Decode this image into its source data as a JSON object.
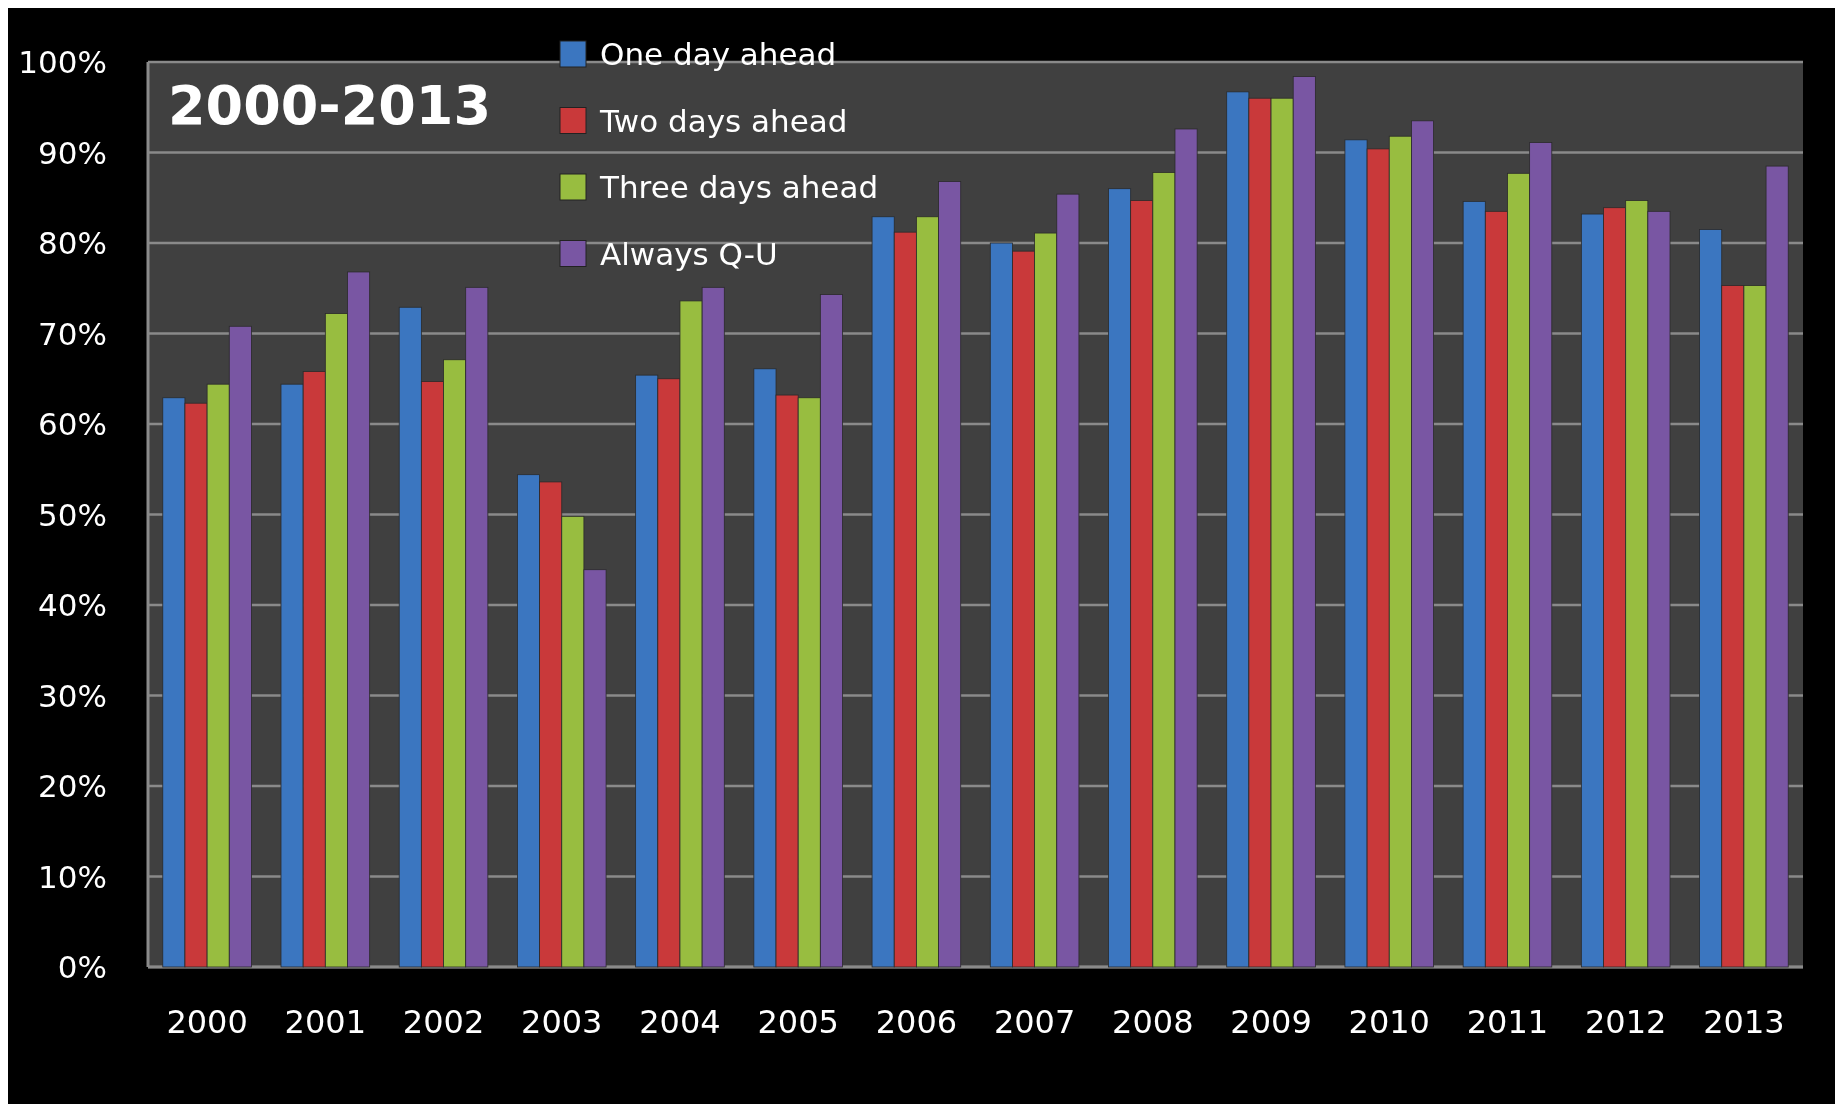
{
  "chart_data": {
    "type": "bar",
    "title": "2000-2013",
    "categories": [
      "2000",
      "2001",
      "2002",
      "2003",
      "2004",
      "2005",
      "2006",
      "2007",
      "2008",
      "2009",
      "2010",
      "2011",
      "2012",
      "2013"
    ],
    "series": [
      {
        "name": "One day ahead",
        "color": "#3b76c0",
        "values": [
          62.9,
          64.4,
          72.9,
          54.4,
          65.4,
          66.1,
          82.9,
          80.0,
          86.0,
          96.7,
          91.4,
          84.6,
          83.2,
          81.5
        ]
      },
      {
        "name": "Two days ahead",
        "color": "#c9393a",
        "values": [
          62.3,
          65.8,
          64.7,
          53.6,
          65.0,
          63.2,
          81.2,
          79.1,
          84.7,
          96.0,
          90.4,
          83.5,
          83.9,
          75.3
        ]
      },
      {
        "name": "Three days ahead",
        "color": "#98bd40",
        "values": [
          64.4,
          72.2,
          67.1,
          49.8,
          73.6,
          62.9,
          82.9,
          81.1,
          87.8,
          96.0,
          91.8,
          87.7,
          84.7,
          75.3
        ]
      },
      {
        "name": "Always Q-U",
        "color": "#7956a3",
        "values": [
          70.8,
          76.8,
          75.1,
          43.9,
          75.1,
          74.3,
          86.8,
          85.4,
          92.6,
          98.4,
          93.5,
          91.1,
          83.5,
          88.5
        ]
      }
    ],
    "ylim": [
      0,
      100
    ],
    "yticks": [
      {
        "value": 0,
        "label": "0%"
      },
      {
        "value": 10,
        "label": "10%"
      },
      {
        "value": 20,
        "label": "20%"
      },
      {
        "value": 30,
        "label": "30%"
      },
      {
        "value": 40,
        "label": "40%"
      },
      {
        "value": 50,
        "label": "50%"
      },
      {
        "value": 60,
        "label": "60%"
      },
      {
        "value": 70,
        "label": "70%"
      },
      {
        "value": 80,
        "label": "80%"
      },
      {
        "value": 90,
        "label": "90%"
      },
      {
        "value": 100,
        "label": "100%"
      }
    ],
    "grid": "y",
    "legend": "top left"
  }
}
